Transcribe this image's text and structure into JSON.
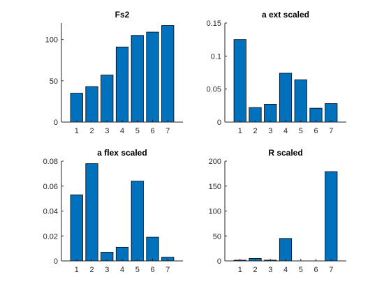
{
  "colors": {
    "bar": "#0072BD",
    "axis": "#262626",
    "background": "#ffffff"
  },
  "chart_data": [
    {
      "type": "bar",
      "title": "Fs2",
      "categories": [
        "1",
        "2",
        "3",
        "4",
        "5",
        "6",
        "7"
      ],
      "values": [
        35,
        43,
        57,
        91,
        105,
        109,
        117
      ],
      "ylim": [
        0,
        120
      ],
      "yticks": [
        0,
        50,
        100
      ],
      "ytick_labels": [
        "0",
        "50",
        "100"
      ],
      "grid": false
    },
    {
      "type": "bar",
      "title": "a ext scaled",
      "categories": [
        "1",
        "2",
        "3",
        "4",
        "5",
        "6",
        "7"
      ],
      "values": [
        0.125,
        0.022,
        0.027,
        0.074,
        0.064,
        0.021,
        0.028
      ],
      "ylim": [
        0,
        0.15
      ],
      "yticks": [
        0,
        0.05,
        0.1,
        0.15
      ],
      "ytick_labels": [
        "0",
        "0.05",
        "0.1",
        "0.15"
      ],
      "grid": false
    },
    {
      "type": "bar",
      "title": "a flex scaled",
      "categories": [
        "1",
        "2",
        "3",
        "4",
        "5",
        "6",
        "7"
      ],
      "values": [
        0.053,
        0.078,
        0.007,
        0.011,
        0.064,
        0.019,
        0.003
      ],
      "ylim": [
        0,
        0.08
      ],
      "yticks": [
        0,
        0.02,
        0.04,
        0.06,
        0.08
      ],
      "ytick_labels": [
        "0",
        "0.02",
        "0.04",
        "0.06",
        "0.08"
      ],
      "grid": false
    },
    {
      "type": "bar",
      "title": "R scaled",
      "categories": [
        "1",
        "2",
        "3",
        "4",
        "5",
        "6",
        "7"
      ],
      "values": [
        1.5,
        5,
        1.5,
        45,
        0,
        0,
        179
      ],
      "ylim": [
        0,
        200
      ],
      "yticks": [
        0,
        50,
        100,
        150,
        200
      ],
      "ytick_labels": [
        "0",
        "50",
        "100",
        "150",
        "200"
      ],
      "grid": false
    }
  ]
}
